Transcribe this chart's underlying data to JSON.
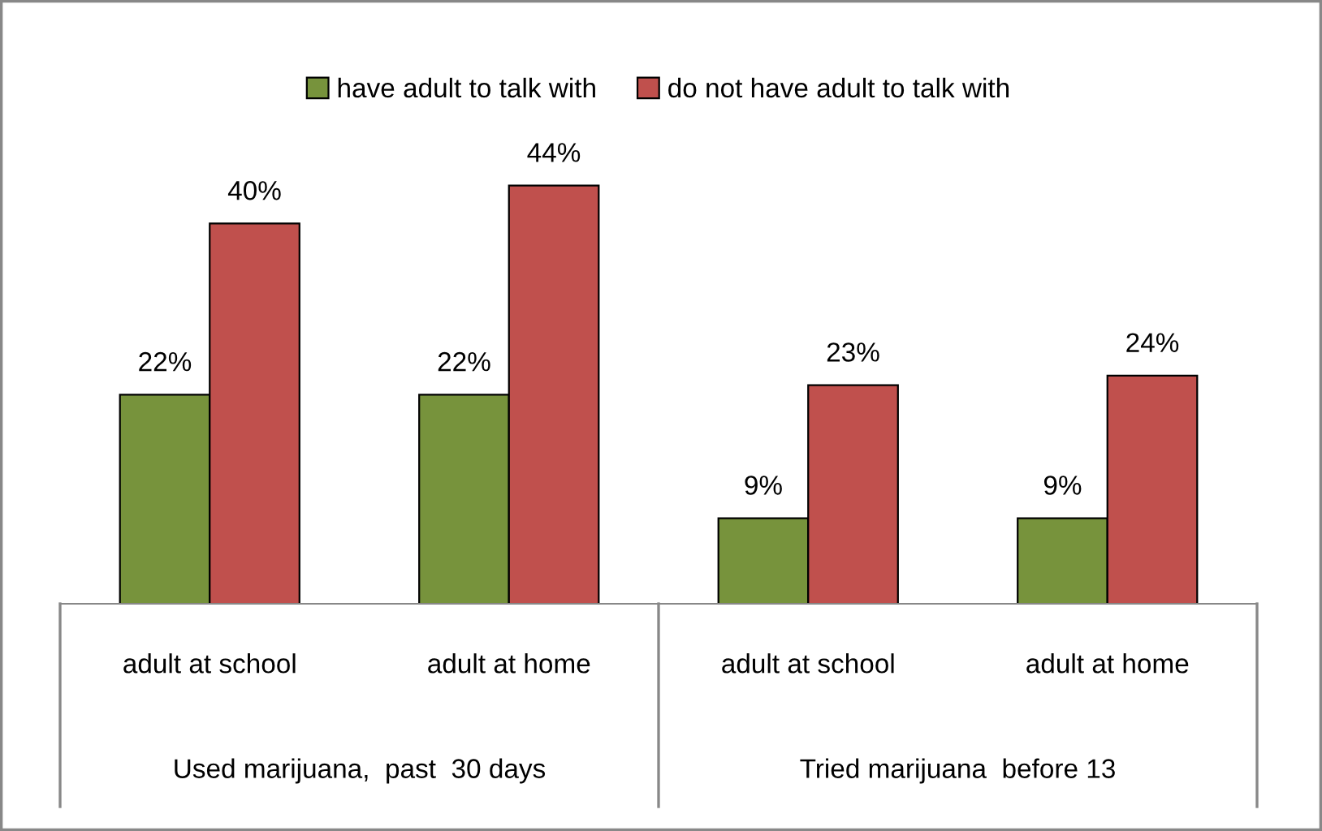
{
  "chart_data": {
    "type": "bar",
    "categories": [
      "adult at school",
      "adult at home",
      "adult at school",
      "adult at home"
    ],
    "series": [
      {
        "name": "have adult to talk with",
        "color": "#77933c",
        "values": [
          22,
          22,
          9,
          9
        ],
        "value_labels": [
          "22%",
          "22%",
          "9%",
          "9%"
        ]
      },
      {
        "name": "do not have adult to talk with",
        "color": "#c0504d",
        "values": [
          40,
          44,
          23,
          24
        ],
        "value_labels": [
          "40%",
          "44%",
          "23%",
          "24%"
        ]
      }
    ],
    "annotations": [
      "Used marijuana,  past  30 days",
      "Tried marijuana  before 13"
    ],
    "legend": "top",
    "grid": false
  }
}
